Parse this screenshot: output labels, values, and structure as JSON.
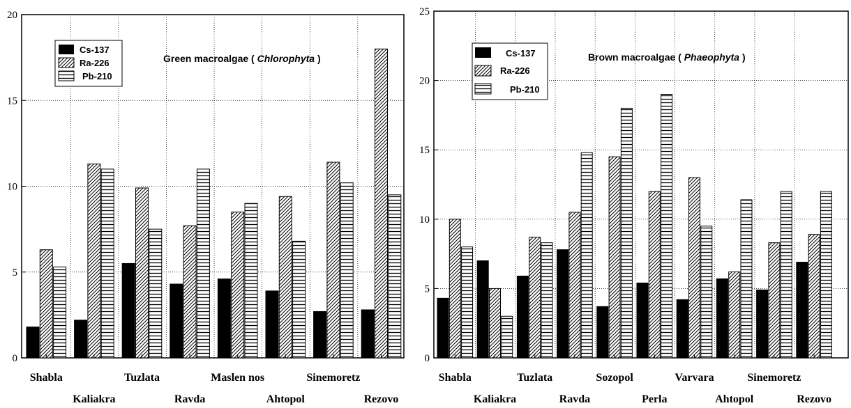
{
  "chart_data": [
    {
      "type": "bar",
      "title": "Green macroalgae ( ",
      "title_italic": "Chlorophyta",
      "title_end": " )",
      "categories": [
        "Shabla",
        "Kaliakra",
        "Tuzlata",
        "Ravda",
        "Maslen nos",
        "Ahtopol",
        "Sinemoretz",
        "Rezovo"
      ],
      "ylim": [
        0,
        20
      ],
      "yticks": [
        "0",
        "5",
        "10",
        "15",
        "20"
      ],
      "ytick_values": [
        0,
        5,
        10,
        15,
        20
      ],
      "grid": true,
      "legend_position": "top-left",
      "series": [
        {
          "name": "Cs-137",
          "pattern": "solid",
          "values": [
            1.8,
            2.2,
            5.5,
            4.3,
            4.6,
            3.9,
            2.7,
            2.8
          ]
        },
        {
          "name": "Ra-226",
          "pattern": "diagonal",
          "values": [
            6.3,
            11.3,
            9.9,
            7.7,
            8.5,
            9.4,
            11.4,
            18.0
          ]
        },
        {
          "name": "Pb-210",
          "pattern": "horizontal",
          "values": [
            5.3,
            11.0,
            7.5,
            11.0,
            9.0,
            6.8,
            10.2,
            9.5
          ]
        }
      ]
    },
    {
      "type": "bar",
      "title": "Brown macroalgae ( ",
      "title_italic": "Phaeophyta",
      "title_end": " )",
      "categories": [
        "Shabla",
        "Kaliakra",
        "Tuzlata",
        "Ravda",
        "Sozopol",
        "Perla",
        "Varvara",
        "Ahtopol",
        "Sinemoretz",
        "Rezovo"
      ],
      "ylim": [
        0,
        25
      ],
      "yticks": [
        "0",
        "5",
        "10",
        "15",
        "20",
        "25"
      ],
      "ytick_values": [
        0,
        5,
        10,
        15,
        20,
        25
      ],
      "grid": true,
      "legend_position": "top-left",
      "series": [
        {
          "name": "Cs-137",
          "pattern": "solid",
          "values": [
            4.3,
            7.0,
            5.9,
            7.8,
            3.7,
            5.4,
            4.2,
            5.7,
            4.9,
            6.9
          ]
        },
        {
          "name": "Ra-226",
          "pattern": "diagonal",
          "values": [
            10.0,
            5.0,
            8.7,
            10.5,
            14.5,
            12.0,
            13.0,
            6.2,
            8.3,
            8.9
          ]
        },
        {
          "name": "Pb-210",
          "pattern": "horizontal",
          "values": [
            8.0,
            3.0,
            8.3,
            14.8,
            18.0,
            19.0,
            9.5,
            11.4,
            12.0,
            12.0
          ]
        }
      ]
    }
  ]
}
